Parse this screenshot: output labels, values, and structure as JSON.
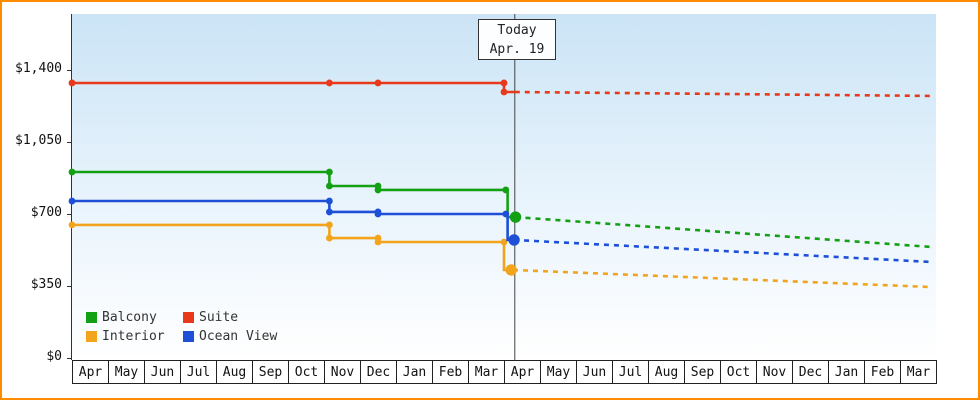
{
  "colors": {
    "frame_border": "#ff8c00",
    "plot_bg_top": "#cbe4f6",
    "axis": "#333333",
    "today_line": "#444444"
  },
  "chart_data": {
    "type": "line",
    "title": "",
    "x_tick_labels": [
      "Apr",
      "May",
      "Jun",
      "Jul",
      "Aug",
      "Sep",
      "Oct",
      "Nov",
      "Dec",
      "Jan",
      "Feb",
      "Mar",
      "Apr",
      "May",
      "Jun",
      "Jul",
      "Aug",
      "Sep",
      "Oct",
      "Nov",
      "Dec",
      "Jan",
      "Feb",
      "Mar"
    ],
    "y_ticks": [
      {
        "label": "$1,400",
        "value": 1400
      },
      {
        "label": "$1,050",
        "value": 1050
      },
      {
        "label": "$700",
        "value": 700
      },
      {
        "label": "$350",
        "value": 350
      },
      {
        "label": "$0",
        "value": 0
      }
    ],
    "ylim": [
      0,
      1680
    ],
    "today": {
      "line1": "Today",
      "line2": "Apr. 19",
      "month_index": 12.3
    },
    "series": [
      {
        "name": "Balcony",
        "color": "#14a014",
        "solid": [
          [
            0,
            904
          ],
          [
            7.15,
            904
          ],
          [
            7.15,
            836
          ],
          [
            8.5,
            836
          ],
          [
            8.5,
            817
          ],
          [
            12.1,
            817
          ],
          [
            12.1,
            685
          ],
          [
            12.3,
            685
          ]
        ],
        "markers": [
          [
            0,
            904
          ],
          [
            7.15,
            904
          ],
          [
            7.15,
            836
          ],
          [
            8.5,
            836
          ],
          [
            8.5,
            817
          ],
          [
            12.05,
            817
          ]
        ],
        "big_marker": [
          12.32,
          685
        ],
        "forecast": [
          [
            12.32,
            685
          ],
          [
            23.85,
            540
          ]
        ]
      },
      {
        "name": "Suite",
        "color": "#e8391c",
        "solid": [
          [
            0,
            1337
          ],
          [
            12.0,
            1337
          ],
          [
            12.0,
            1293
          ],
          [
            12.3,
            1293
          ]
        ],
        "markers": [
          [
            0,
            1337
          ],
          [
            7.15,
            1337
          ],
          [
            8.5,
            1337
          ],
          [
            12.0,
            1337
          ],
          [
            12.0,
            1293
          ]
        ],
        "big_marker": null,
        "forecast": [
          [
            12.3,
            1293
          ],
          [
            23.85,
            1274
          ]
        ]
      },
      {
        "name": "Interior",
        "color": "#f2a51c",
        "solid": [
          [
            0,
            647
          ],
          [
            7.15,
            647
          ],
          [
            7.15,
            583
          ],
          [
            8.5,
            583
          ],
          [
            8.5,
            564
          ],
          [
            12.0,
            564
          ],
          [
            12.0,
            428
          ],
          [
            12.2,
            428
          ]
        ],
        "markers": [
          [
            0,
            647
          ],
          [
            7.15,
            647
          ],
          [
            7.15,
            583
          ],
          [
            8.5,
            583
          ],
          [
            8.5,
            564
          ],
          [
            12.0,
            564
          ]
        ],
        "big_marker": [
          12.2,
          428
        ],
        "forecast": [
          [
            12.25,
            428
          ],
          [
            23.85,
            345
          ]
        ]
      },
      {
        "name": "Ocean View",
        "color": "#1d4fd7",
        "solid": [
          [
            0,
            763
          ],
          [
            7.15,
            763
          ],
          [
            7.15,
            710
          ],
          [
            8.5,
            710
          ],
          [
            8.5,
            700
          ],
          [
            12.1,
            700
          ],
          [
            12.1,
            574
          ],
          [
            12.28,
            574
          ]
        ],
        "markers": [
          [
            0,
            763
          ],
          [
            7.15,
            763
          ],
          [
            7.15,
            710
          ],
          [
            8.5,
            710
          ],
          [
            8.5,
            700
          ],
          [
            12.05,
            700
          ]
        ],
        "big_marker": [
          12.28,
          574
        ],
        "forecast": [
          [
            12.28,
            574
          ],
          [
            23.85,
            467
          ]
        ]
      }
    ]
  }
}
